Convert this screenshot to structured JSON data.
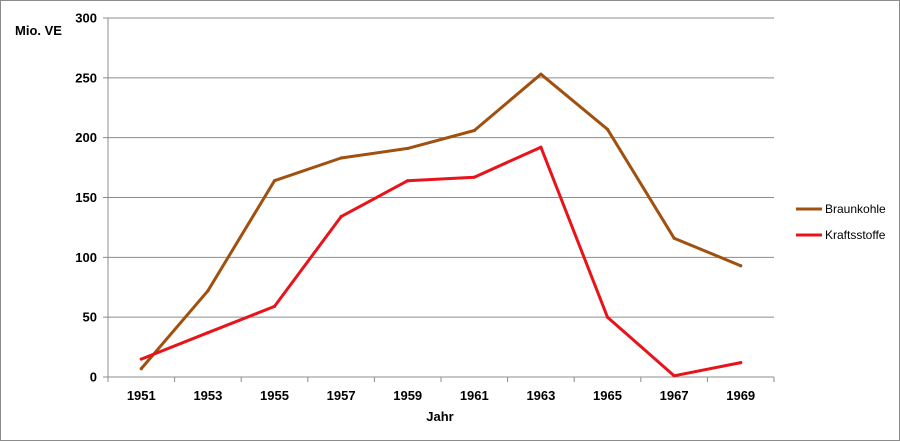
{
  "chart_data": {
    "type": "line",
    "title": "",
    "xlabel": "Jahr",
    "ylabel": "Mio. VE",
    "ylim": [
      0,
      300
    ],
    "yticks": [
      0,
      50,
      100,
      150,
      200,
      250,
      300
    ],
    "categories": [
      "1951",
      "1953",
      "1955",
      "1957",
      "1959",
      "1961",
      "1963",
      "1965",
      "1967",
      "1969"
    ],
    "grid": true,
    "legend_position": "right",
    "series": [
      {
        "name": "Braunkohle",
        "color": "#a0500f",
        "values": [
          7,
          72,
          164,
          183,
          191,
          206,
          253,
          207,
          116,
          93
        ]
      },
      {
        "name": "Kraftsstoffe",
        "color": "#e8141b",
        "values": [
          15,
          37,
          59,
          134,
          164,
          167,
          192,
          50,
          1,
          12
        ]
      }
    ]
  }
}
